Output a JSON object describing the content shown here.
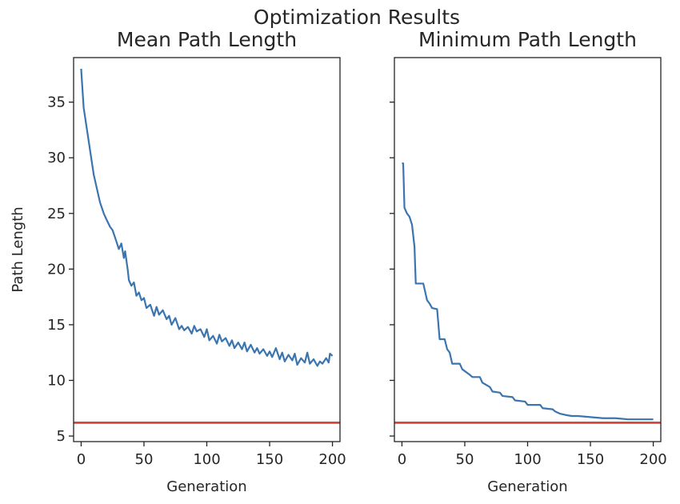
{
  "figure": {
    "title": "Optimization Results"
  },
  "chart_data": [
    {
      "type": "line",
      "title": "Mean Path Length",
      "xlabel": "Generation",
      "ylabel": "Path Length",
      "xlim": [
        -6,
        206
      ],
      "ylim": [
        4.5,
        39
      ],
      "xticks": [
        0,
        50,
        100,
        150,
        200
      ],
      "yticks": [
        5,
        10,
        15,
        20,
        25,
        30,
        35
      ],
      "xtick_labels": [
        "0",
        "50",
        "100",
        "150",
        "200"
      ],
      "ytick_labels": [
        "5",
        "10",
        "15",
        "20",
        "25",
        "30",
        "35"
      ],
      "grid": false,
      "series": [
        {
          "color": "#3a75b0",
          "x": [
            0,
            2,
            4,
            6,
            8,
            10,
            12,
            15,
            18,
            20,
            23,
            25,
            28,
            30,
            32,
            34,
            35,
            37,
            38,
            40,
            42,
            44,
            46,
            48,
            50,
            52,
            55,
            58,
            60,
            62,
            65,
            68,
            70,
            72,
            75,
            78,
            80,
            82,
            85,
            88,
            90,
            92,
            95,
            98,
            100,
            102,
            105,
            108,
            110,
            112,
            115,
            118,
            120,
            122,
            125,
            128,
            130,
            132,
            135,
            138,
            140,
            142,
            145,
            148,
            150,
            152,
            155,
            158,
            160,
            162,
            165,
            168,
            170,
            172,
            175,
            178,
            180,
            182,
            185,
            188,
            190,
            192,
            195,
            197,
            198,
            200
          ],
          "y": [
            38.0,
            34.5,
            33.0,
            31.5,
            30.0,
            28.5,
            27.5,
            26.0,
            25.0,
            24.5,
            23.8,
            23.5,
            22.5,
            21.8,
            22.3,
            21.0,
            21.6,
            20.0,
            19.0,
            18.5,
            18.8,
            17.6,
            17.9,
            17.2,
            17.4,
            16.5,
            16.8,
            15.8,
            16.6,
            15.9,
            16.3,
            15.5,
            15.8,
            15.0,
            15.6,
            14.6,
            14.9,
            14.5,
            14.8,
            14.2,
            14.9,
            14.4,
            14.6,
            13.9,
            14.6,
            13.6,
            14.0,
            13.3,
            14.1,
            13.5,
            13.8,
            13.1,
            13.6,
            12.9,
            13.4,
            12.8,
            13.4,
            12.6,
            13.2,
            12.5,
            12.9,
            12.4,
            12.8,
            12.2,
            12.6,
            12.1,
            12.9,
            11.9,
            12.5,
            11.7,
            12.3,
            11.8,
            12.4,
            11.4,
            12.0,
            11.6,
            12.5,
            11.5,
            11.9,
            11.3,
            11.7,
            11.5,
            12.0,
            11.6,
            12.4,
            12.2
          ]
        },
        {
          "color": "#d6443f",
          "x": [
            -6,
            206
          ],
          "y": [
            6.2,
            6.2
          ]
        }
      ]
    },
    {
      "type": "line",
      "title": "Minimum Path Length",
      "xlabel": "Generation",
      "ylabel": "",
      "xlim": [
        -6,
        206
      ],
      "ylim": [
        4.5,
        39
      ],
      "xticks": [
        0,
        50,
        100,
        150,
        200
      ],
      "yticks": [
        5,
        10,
        15,
        20,
        25,
        30,
        35
      ],
      "xtick_labels": [
        "0",
        "50",
        "100",
        "150",
        "200"
      ],
      "ytick_labels": [],
      "grid": false,
      "series": [
        {
          "color": "#3a75b0",
          "x": [
            0,
            1,
            2,
            4,
            6,
            8,
            10,
            11,
            12,
            17,
            20,
            22,
            24,
            28,
            30,
            34,
            36,
            38,
            40,
            46,
            48,
            54,
            56,
            62,
            64,
            70,
            72,
            78,
            80,
            88,
            90,
            98,
            100,
            110,
            112,
            120,
            122,
            126,
            130,
            135,
            140,
            150,
            160,
            170,
            180,
            190,
            200
          ],
          "y": [
            29.5,
            29.5,
            25.5,
            25.0,
            24.7,
            24.0,
            22.0,
            18.7,
            18.7,
            18.7,
            17.2,
            16.9,
            16.5,
            16.4,
            13.7,
            13.7,
            12.8,
            12.5,
            11.5,
            11.5,
            11.0,
            10.5,
            10.3,
            10.3,
            9.8,
            9.4,
            9.0,
            8.9,
            8.6,
            8.5,
            8.2,
            8.1,
            7.8,
            7.8,
            7.5,
            7.4,
            7.2,
            7.0,
            6.9,
            6.8,
            6.8,
            6.7,
            6.6,
            6.6,
            6.5,
            6.5,
            6.5
          ]
        },
        {
          "color": "#d6443f",
          "x": [
            -6,
            206
          ],
          "y": [
            6.2,
            6.2
          ]
        }
      ]
    }
  ]
}
